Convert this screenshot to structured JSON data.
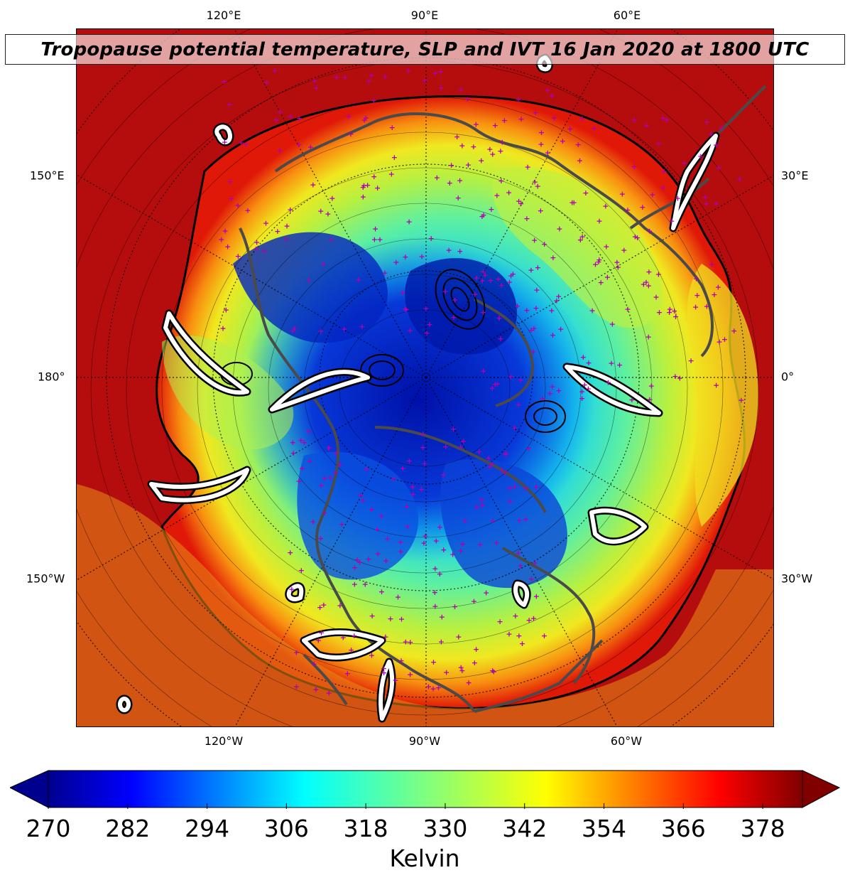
{
  "title": "Tropopause potential temperature, SLP and IVT 16 Jan 2020 at 1800 UTC",
  "lon_labels_top": [
    "120°E",
    "90°E",
    "60°E"
  ],
  "lon_labels_bottom": [
    "120°W",
    "90°W",
    "60°W"
  ],
  "lat_labels_left": [
    "150°E",
    "180°",
    "150°W"
  ],
  "lat_labels_right": [
    "30°E",
    "0°",
    "30°W"
  ],
  "colorbar": {
    "unit": "Kelvin",
    "ticks": [
      "270",
      "282",
      "294",
      "306",
      "318",
      "330",
      "342",
      "354",
      "366",
      "378"
    ],
    "vmin": 270,
    "vmax": 384,
    "colormap": "jet",
    "extend": "both"
  },
  "colors": {
    "station_markers": "#b000b0",
    "coastlines": "#4a4a4a",
    "ivt_contour_fill": "#ffffff",
    "slp_contours": "#000000"
  }
}
